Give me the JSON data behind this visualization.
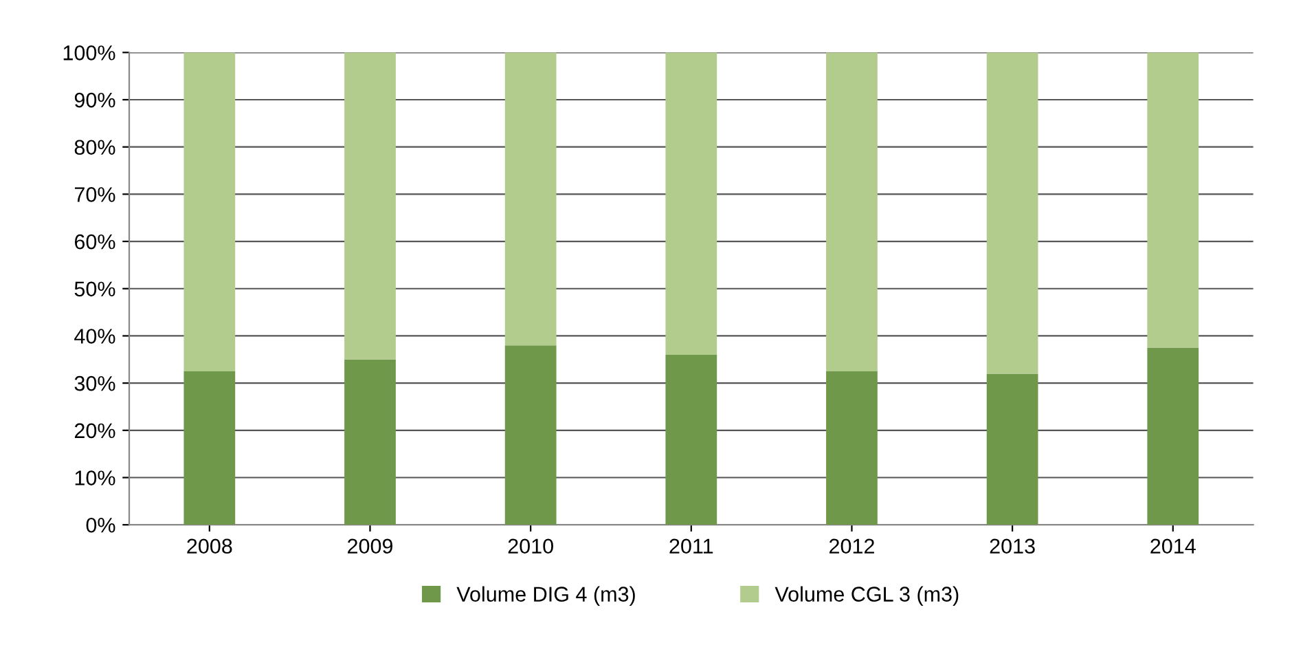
{
  "chart_data": {
    "type": "bar",
    "stacked": true,
    "categories": [
      "2008",
      "2009",
      "2010",
      "2011",
      "2012",
      "2013",
      "2014"
    ],
    "series": [
      {
        "name": "Volume DIG 4 (m3)",
        "color": "#70984a",
        "values": [
          32.5,
          35,
          38,
          36,
          32.5,
          32,
          37.5
        ]
      },
      {
        "name": "Volume CGL 3 (m3)",
        "color": "#b2cc8e",
        "values": [
          67.5,
          65,
          62,
          64,
          67.5,
          68,
          62.5
        ]
      }
    ],
    "ylim": [
      0,
      100
    ],
    "yticks": [
      {
        "value": 0,
        "label": "0%"
      },
      {
        "value": 10,
        "label": "10%"
      },
      {
        "value": 20,
        "label": "20%"
      },
      {
        "value": 30,
        "label": "30%"
      },
      {
        "value": 40,
        "label": "40%"
      },
      {
        "value": 50,
        "label": "50%"
      },
      {
        "value": 60,
        "label": "60%"
      },
      {
        "value": 70,
        "label": "70%"
      },
      {
        "value": 80,
        "label": "80%"
      },
      {
        "value": 90,
        "label": "90%"
      },
      {
        "value": 100,
        "label": "100%"
      }
    ],
    "grid": "y",
    "legend": "bottom"
  }
}
